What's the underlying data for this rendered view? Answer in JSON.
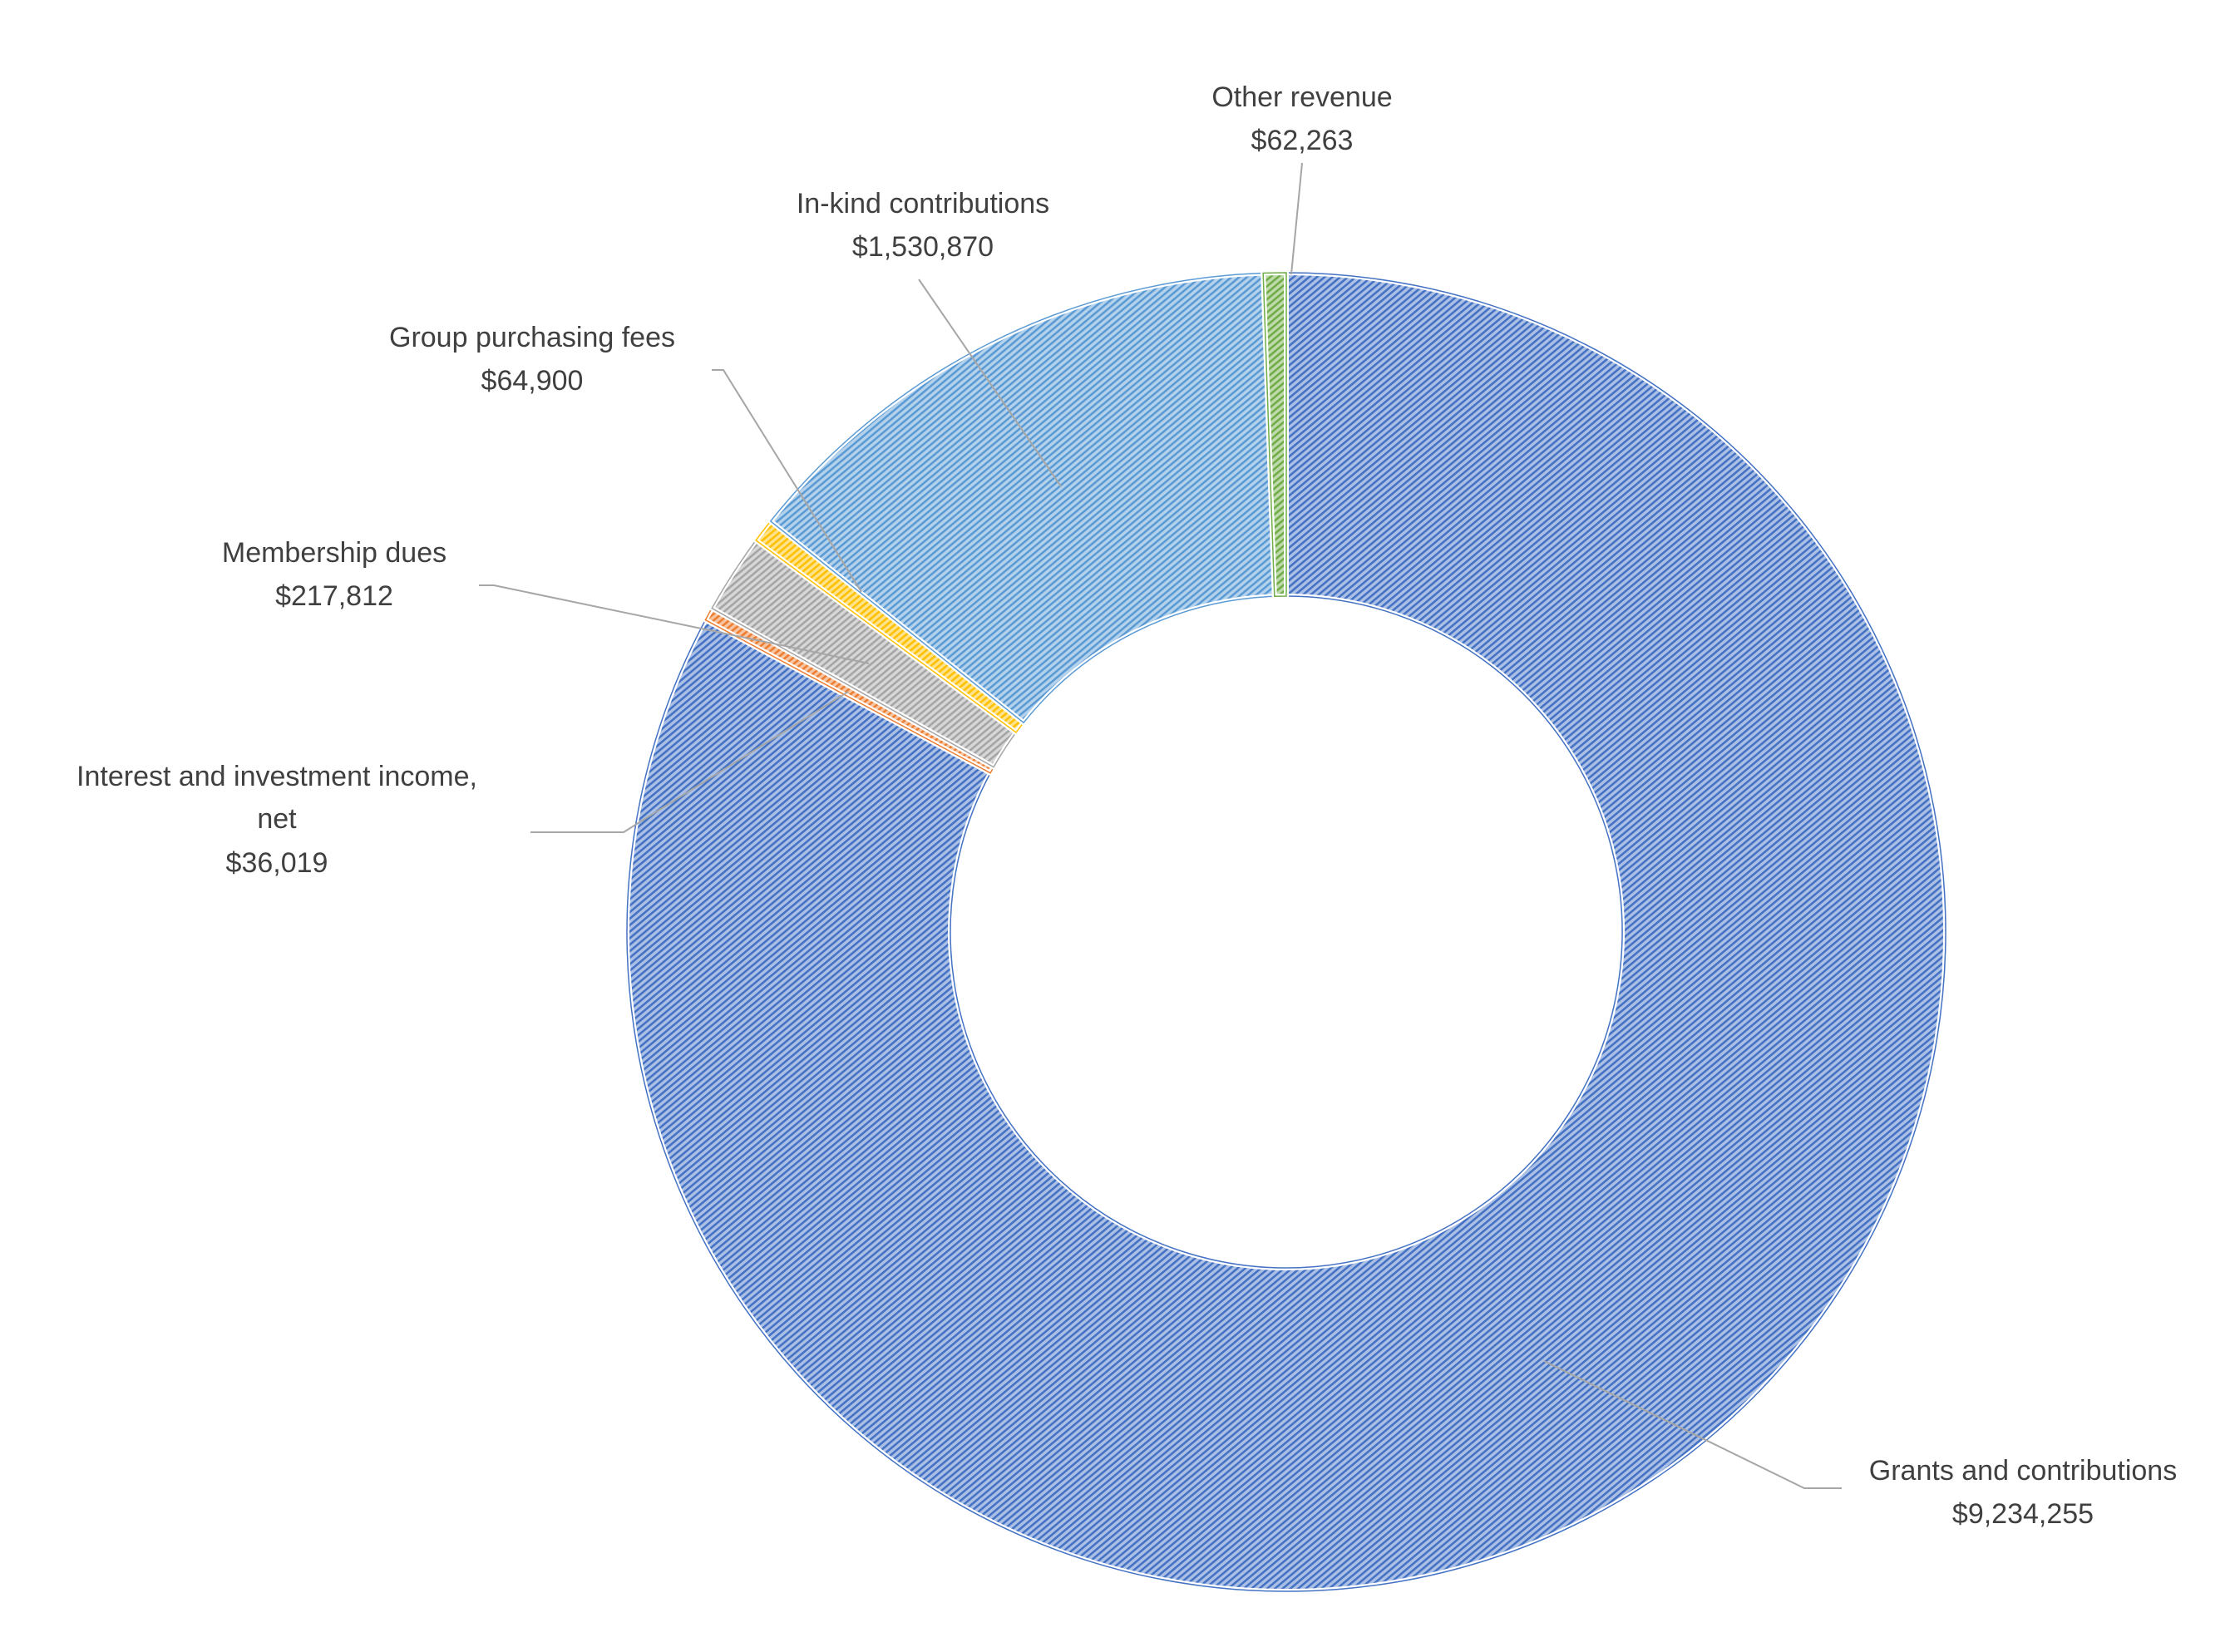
{
  "chart_data": {
    "type": "pie",
    "variant": "doughnut",
    "title": "",
    "slices": [
      {
        "name": "Grants and contributions",
        "value": 9234255,
        "value_label": "$9,234,255",
        "color": "#4472c4"
      },
      {
        "name": "Interest and investment income, net",
        "value": 36019,
        "value_label": "$36,019",
        "color": "#ed7d31"
      },
      {
        "name": "Membership dues",
        "value": 217812,
        "value_label": "$217,812",
        "color": "#a5a5a5"
      },
      {
        "name": "Group purchasing fees",
        "value": 64900,
        "value_label": "$64,900",
        "color": "#ffc000"
      },
      {
        "name": "In-kind contributions",
        "value": 1530870,
        "value_label": "$1,530,870",
        "color": "#5b9bd5"
      },
      {
        "name": "Other revenue",
        "value": 62263,
        "value_label": "$62,263",
        "color": "#70ad47"
      }
    ],
    "fill_pattern": "diagonal-hatch",
    "legend": "none",
    "data_labels": "outside with leader lines"
  }
}
